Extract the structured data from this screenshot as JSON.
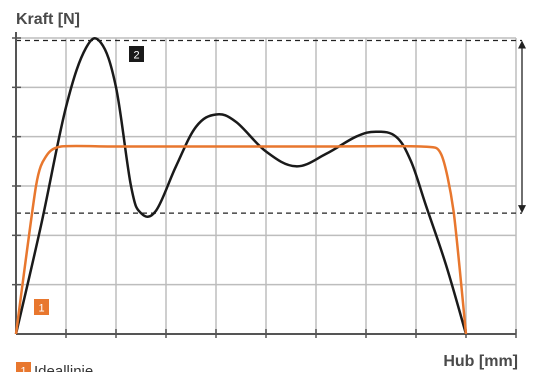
{
  "chart_data": {
    "type": "line",
    "title": "",
    "ylabel": "Kraft [N]",
    "xlabel": "Hub [mm]",
    "grid": true,
    "xlim": [
      0,
      10
    ],
    "ylim": [
      0,
      6
    ],
    "series": [
      {
        "name": "Ideallinie",
        "marker_label": "1",
        "color": "#e8772e",
        "x": [
          0,
          0.4,
          0.6,
          0.9,
          2,
          4,
          6,
          8.1,
          8.5,
          8.75,
          9.0
        ],
        "y": [
          0,
          3,
          3.6,
          3.8,
          3.8,
          3.8,
          3.8,
          3.8,
          3.65,
          2.5,
          0
        ]
      },
      {
        "name": "",
        "marker_label": "2",
        "color": "#1a1a1a",
        "x": [
          0,
          0.5,
          1.0,
          1.4,
          1.7,
          2.0,
          2.3,
          2.5,
          2.8,
          3.2,
          3.6,
          4.0,
          4.4,
          5.0,
          5.6,
          6.2,
          6.8,
          7.2,
          7.6,
          7.9,
          8.2,
          8.6,
          9.0
        ],
        "y": [
          0,
          2.2,
          4.6,
          5.8,
          5.9,
          5.0,
          3.0,
          2.45,
          2.5,
          3.4,
          4.2,
          4.45,
          4.3,
          3.7,
          3.4,
          3.65,
          4.0,
          4.1,
          4.0,
          3.5,
          2.6,
          1.4,
          0
        ]
      }
    ],
    "reference_lines": {
      "upper_y": 5.95,
      "lower_y": 2.45
    }
  }
}
